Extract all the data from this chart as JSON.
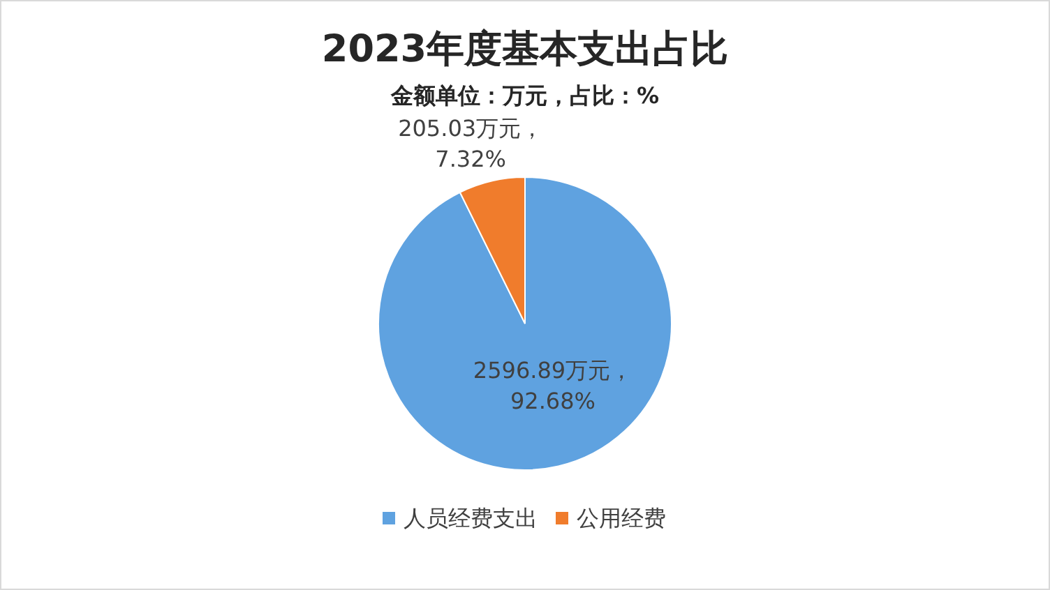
{
  "chart_data": {
    "type": "pie",
    "title": "2023年度基本支出占比",
    "subtitle": "金额单位：万元，占比：%",
    "categories": [
      "人员经费支出",
      "公用经费"
    ],
    "values": [
      2596.89,
      205.03
    ],
    "colors": [
      "#5fa2e0",
      "#f07c2c"
    ],
    "value_labels": [
      "2596.89万元，\n92.68%",
      "205.03万元，\n7.32%"
    ],
    "legend": "bottom"
  }
}
